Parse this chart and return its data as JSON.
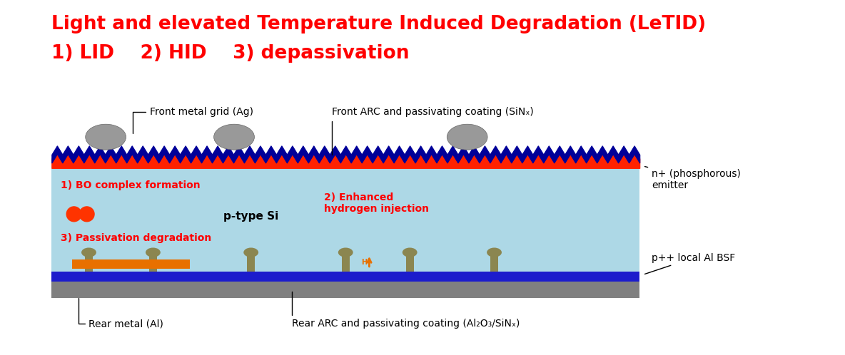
{
  "title_line1": "Light and elevated Temperature Induced Degradation (LeTID)",
  "title_line2": "1) LID    2) HID    3) depassivation",
  "title_color": "#ff0000",
  "title_fontsize": 19,
  "subtitle_fontsize": 19,
  "bg_color": "#ffffff",
  "si_color": "#add8e6",
  "rear_metal_color": "#808080",
  "rear_dielectric_color": "#1c1ccc",
  "orange_rect_color": "#e87000",
  "red_label_color": "#ff0000",
  "label1": "1) BO complex formation",
  "label2": "2) Enhanced\nhydrogen injection",
  "label3": "3) Passivation degradation",
  "label_ptypesi": "p-type Si",
  "annot_front_ag": "Front metal grid (Ag)",
  "annot_front_arc": "Front ARC and passivating coating (SiNₓ)",
  "annot_nplus": "n+ (phosphorous)\nemitter",
  "annot_ppluslocal": "p++ local Al BSF",
  "annot_rear_metal": "Rear metal (Al)",
  "annot_rear_arc": "Rear ARC and passivating coating (Al₂O₃/SiNₓ)"
}
